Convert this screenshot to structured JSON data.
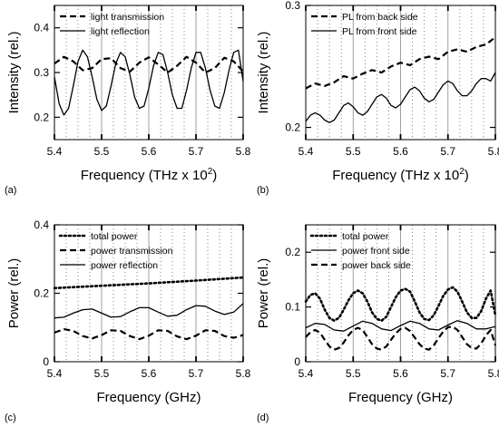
{
  "chart_data": [
    {
      "panel_label": "(a)",
      "type": "line",
      "xlabel": "Frequency (THz x 10²)",
      "xlabel_base": "Frequency (THz x 10",
      "xlabel_sup": "2",
      "xlabel_tail": ")",
      "ylabel": "Intensity (rel.)",
      "xlim": [
        5.4,
        5.8
      ],
      "ylim": [
        0.15,
        0.45
      ],
      "xticks": [
        5.4,
        5.5,
        5.6,
        5.7,
        5.8
      ],
      "xtick_labels": [
        "5.4",
        "5.5",
        "5.6",
        "5.7",
        "5.8"
      ],
      "yticks": [
        0.2,
        0.3,
        0.4
      ],
      "ytick_labels": [
        "0.2",
        "0.3",
        "0.4"
      ],
      "dotted_grid_x": [
        5.425,
        5.45,
        5.475,
        5.525,
        5.55,
        5.575,
        5.625,
        5.65,
        5.675,
        5.725,
        5.75,
        5.775
      ],
      "solid_grid_x": [
        5.5,
        5.6,
        5.7
      ],
      "legend_position": "top-left",
      "series": [
        {
          "name": "light transmission",
          "style": "dashed",
          "x": [
            5.4,
            5.42,
            5.44,
            5.46,
            5.48,
            5.5,
            5.52,
            5.54,
            5.56,
            5.58,
            5.6,
            5.62,
            5.64,
            5.66,
            5.68,
            5.7,
            5.72,
            5.74,
            5.76,
            5.78,
            5.8
          ],
          "y": [
            0.32,
            0.335,
            0.325,
            0.305,
            0.31,
            0.33,
            0.332,
            0.31,
            0.302,
            0.322,
            0.334,
            0.318,
            0.3,
            0.315,
            0.335,
            0.322,
            0.3,
            0.31,
            0.333,
            0.325,
            0.302
          ]
        },
        {
          "name": "light reflection",
          "style": "solid",
          "x": [
            5.4,
            5.41,
            5.42,
            5.43,
            5.44,
            5.45,
            5.46,
            5.47,
            5.48,
            5.49,
            5.5,
            5.51,
            5.52,
            5.53,
            5.54,
            5.55,
            5.56,
            5.57,
            5.58,
            5.59,
            5.6,
            5.61,
            5.62,
            5.63,
            5.64,
            5.65,
            5.66,
            5.67,
            5.68,
            5.69,
            5.7,
            5.71,
            5.72,
            5.73,
            5.74,
            5.75,
            5.76,
            5.77,
            5.78,
            5.79,
            5.8
          ],
          "y": [
            0.29,
            0.23,
            0.205,
            0.22,
            0.27,
            0.325,
            0.35,
            0.335,
            0.29,
            0.24,
            0.215,
            0.225,
            0.27,
            0.32,
            0.345,
            0.335,
            0.295,
            0.245,
            0.22,
            0.225,
            0.265,
            0.315,
            0.345,
            0.34,
            0.3,
            0.25,
            0.22,
            0.22,
            0.26,
            0.31,
            0.345,
            0.345,
            0.31,
            0.26,
            0.225,
            0.22,
            0.255,
            0.305,
            0.345,
            0.35,
            0.28
          ]
        }
      ]
    },
    {
      "panel_label": "(b)",
      "type": "line",
      "xlabel": "Frequency (THz x 10²)",
      "xlabel_base": "Frequency (THz x 10",
      "xlabel_sup": "2",
      "xlabel_tail": ")",
      "ylabel": "Intensity (rel.)",
      "xlim": [
        5.4,
        5.8
      ],
      "ylim": [
        0.19,
        0.3
      ],
      "xticks": [
        5.4,
        5.5,
        5.6,
        5.7,
        5.8
      ],
      "xtick_labels": [
        "5.4",
        "5.5",
        "5.6",
        "5.7",
        "5.8"
      ],
      "yticks": [
        0.2,
        0.3
      ],
      "ytick_labels": [
        "0.2",
        "0.3"
      ],
      "dotted_grid_x": [
        5.425,
        5.45,
        5.475,
        5.525,
        5.55,
        5.575,
        5.625,
        5.65,
        5.675,
        5.725,
        5.75,
        5.775
      ],
      "solid_grid_x": [
        5.5,
        5.6,
        5.7
      ],
      "legend_position": "top-left",
      "series": [
        {
          "name": "PL from back side",
          "style": "dashed",
          "x": [
            5.4,
            5.42,
            5.44,
            5.46,
            5.48,
            5.5,
            5.52,
            5.54,
            5.56,
            5.58,
            5.6,
            5.62,
            5.64,
            5.66,
            5.68,
            5.7,
            5.72,
            5.74,
            5.76,
            5.78,
            5.8
          ],
          "y": [
            0.232,
            0.236,
            0.234,
            0.237,
            0.242,
            0.24,
            0.244,
            0.247,
            0.245,
            0.25,
            0.253,
            0.251,
            0.256,
            0.258,
            0.256,
            0.262,
            0.264,
            0.262,
            0.266,
            0.268,
            0.274
          ]
        },
        {
          "name": "PL from front side",
          "style": "solid",
          "x": [
            5.4,
            5.41,
            5.42,
            5.43,
            5.44,
            5.45,
            5.46,
            5.47,
            5.48,
            5.49,
            5.5,
            5.51,
            5.52,
            5.53,
            5.54,
            5.55,
            5.56,
            5.57,
            5.58,
            5.59,
            5.6,
            5.61,
            5.62,
            5.63,
            5.64,
            5.65,
            5.66,
            5.67,
            5.68,
            5.69,
            5.7,
            5.71,
            5.72,
            5.73,
            5.74,
            5.75,
            5.76,
            5.77,
            5.78,
            5.79,
            5.8
          ],
          "y": [
            0.205,
            0.21,
            0.212,
            0.21,
            0.206,
            0.204,
            0.206,
            0.212,
            0.218,
            0.22,
            0.217,
            0.212,
            0.21,
            0.213,
            0.219,
            0.225,
            0.227,
            0.224,
            0.218,
            0.216,
            0.219,
            0.225,
            0.231,
            0.233,
            0.23,
            0.224,
            0.221,
            0.223,
            0.229,
            0.235,
            0.238,
            0.236,
            0.23,
            0.226,
            0.226,
            0.23,
            0.236,
            0.24,
            0.24,
            0.238,
            0.245
          ]
        }
      ]
    },
    {
      "panel_label": "(c)",
      "type": "line",
      "xlabel": "Frequency (GHz)",
      "ylabel": "Power (rel.)",
      "xlim": [
        5.4,
        5.8
      ],
      "ylim": [
        0,
        0.4
      ],
      "xticks": [
        5.4,
        5.5,
        5.6,
        5.7,
        5.8
      ],
      "xtick_labels": [
        "5.4",
        "5.5",
        "5.6",
        "5.7",
        "5.8"
      ],
      "yticks": [
        0,
        0.2,
        0.4
      ],
      "ytick_labels": [
        "0",
        "0.2",
        "0.4"
      ],
      "dotted_grid_x": [
        5.425,
        5.45,
        5.475,
        5.525,
        5.55,
        5.575,
        5.625,
        5.65,
        5.675,
        5.725,
        5.75,
        5.775
      ],
      "solid_grid_x": [
        5.5,
        5.6,
        5.7
      ],
      "legend_position": "top-left",
      "series": [
        {
          "name": "total power",
          "style": "dotted",
          "x": [
            5.4,
            5.5,
            5.6,
            5.7,
            5.8
          ],
          "y": [
            0.215,
            0.222,
            0.229,
            0.237,
            0.246
          ]
        },
        {
          "name": "power transmission",
          "style": "dashed",
          "x": [
            5.4,
            5.42,
            5.44,
            5.46,
            5.48,
            5.5,
            5.52,
            5.54,
            5.56,
            5.58,
            5.6,
            5.62,
            5.64,
            5.66,
            5.68,
            5.7,
            5.72,
            5.74,
            5.76,
            5.78,
            5.8
          ],
          "y": [
            0.085,
            0.095,
            0.09,
            0.075,
            0.068,
            0.078,
            0.092,
            0.09,
            0.075,
            0.066,
            0.076,
            0.092,
            0.09,
            0.074,
            0.066,
            0.076,
            0.092,
            0.09,
            0.075,
            0.07,
            0.078
          ]
        },
        {
          "name": "power reflection",
          "style": "solid",
          "x": [
            5.4,
            5.42,
            5.44,
            5.46,
            5.48,
            5.5,
            5.52,
            5.54,
            5.56,
            5.58,
            5.6,
            5.62,
            5.64,
            5.66,
            5.68,
            5.7,
            5.72,
            5.74,
            5.76,
            5.78,
            5.8
          ],
          "y": [
            0.128,
            0.13,
            0.142,
            0.152,
            0.154,
            0.142,
            0.13,
            0.132,
            0.146,
            0.158,
            0.158,
            0.145,
            0.133,
            0.136,
            0.152,
            0.164,
            0.162,
            0.148,
            0.138,
            0.145,
            0.17
          ]
        }
      ]
    },
    {
      "panel_label": "(d)",
      "type": "line",
      "xlabel": "Frequency (GHz)",
      "ylabel": "Power (rel.)",
      "xlim": [
        5.4,
        5.8
      ],
      "ylim": [
        0,
        0.25
      ],
      "xticks": [
        5.4,
        5.5,
        5.6,
        5.7,
        5.8
      ],
      "xtick_labels": [
        "5.4",
        "5.5",
        "5.6",
        "5.7",
        "5.8"
      ],
      "yticks": [
        0,
        0.1,
        0.2
      ],
      "ytick_labels": [
        "0",
        "0.1",
        "0.2"
      ],
      "dotted_grid_x": [
        5.425,
        5.45,
        5.475,
        5.525,
        5.55,
        5.575,
        5.625,
        5.65,
        5.675,
        5.725,
        5.75,
        5.775
      ],
      "solid_grid_x": [
        5.5,
        5.6,
        5.7
      ],
      "legend_position": "top-left",
      "series": [
        {
          "name": "total power",
          "style": "dotted",
          "x": [
            5.4,
            5.41,
            5.42,
            5.43,
            5.44,
            5.45,
            5.46,
            5.47,
            5.48,
            5.49,
            5.5,
            5.51,
            5.52,
            5.53,
            5.54,
            5.55,
            5.56,
            5.57,
            5.58,
            5.59,
            5.6,
            5.61,
            5.62,
            5.63,
            5.64,
            5.65,
            5.66,
            5.67,
            5.68,
            5.69,
            5.7,
            5.71,
            5.72,
            5.73,
            5.74,
            5.75,
            5.76,
            5.77,
            5.78,
            5.79,
            5.8
          ],
          "y": [
            0.11,
            0.122,
            0.125,
            0.115,
            0.095,
            0.08,
            0.075,
            0.08,
            0.095,
            0.112,
            0.125,
            0.13,
            0.125,
            0.11,
            0.09,
            0.078,
            0.075,
            0.082,
            0.1,
            0.118,
            0.13,
            0.133,
            0.128,
            0.11,
            0.09,
            0.078,
            0.076,
            0.085,
            0.102,
            0.12,
            0.132,
            0.136,
            0.128,
            0.11,
            0.09,
            0.08,
            0.08,
            0.092,
            0.115,
            0.13,
            0.085
          ]
        },
        {
          "name": "power front side",
          "style": "solid",
          "x": [
            5.4,
            5.42,
            5.44,
            5.46,
            5.48,
            5.5,
            5.52,
            5.54,
            5.56,
            5.58,
            5.6,
            5.62,
            5.64,
            5.66,
            5.68,
            5.7,
            5.72,
            5.74,
            5.76,
            5.78,
            5.8
          ],
          "y": [
            0.062,
            0.07,
            0.068,
            0.058,
            0.056,
            0.065,
            0.074,
            0.07,
            0.06,
            0.057,
            0.066,
            0.074,
            0.07,
            0.06,
            0.058,
            0.067,
            0.075,
            0.07,
            0.06,
            0.06,
            0.064
          ]
        },
        {
          "name": "power back side",
          "style": "dashed",
          "x": [
            5.4,
            5.41,
            5.42,
            5.43,
            5.44,
            5.45,
            5.46,
            5.47,
            5.48,
            5.49,
            5.5,
            5.51,
            5.52,
            5.53,
            5.54,
            5.55,
            5.56,
            5.57,
            5.58,
            5.59,
            5.6,
            5.61,
            5.62,
            5.63,
            5.64,
            5.65,
            5.66,
            5.67,
            5.68,
            5.69,
            5.7,
            5.71,
            5.72,
            5.73,
            5.74,
            5.75,
            5.76,
            5.77,
            5.78,
            5.79,
            5.8
          ],
          "y": [
            0.045,
            0.054,
            0.058,
            0.053,
            0.04,
            0.028,
            0.022,
            0.025,
            0.035,
            0.048,
            0.058,
            0.062,
            0.058,
            0.045,
            0.032,
            0.024,
            0.022,
            0.028,
            0.04,
            0.052,
            0.06,
            0.062,
            0.056,
            0.044,
            0.032,
            0.024,
            0.022,
            0.03,
            0.043,
            0.055,
            0.063,
            0.064,
            0.058,
            0.045,
            0.032,
            0.025,
            0.024,
            0.033,
            0.048,
            0.058,
            0.03
          ]
        }
      ]
    }
  ]
}
